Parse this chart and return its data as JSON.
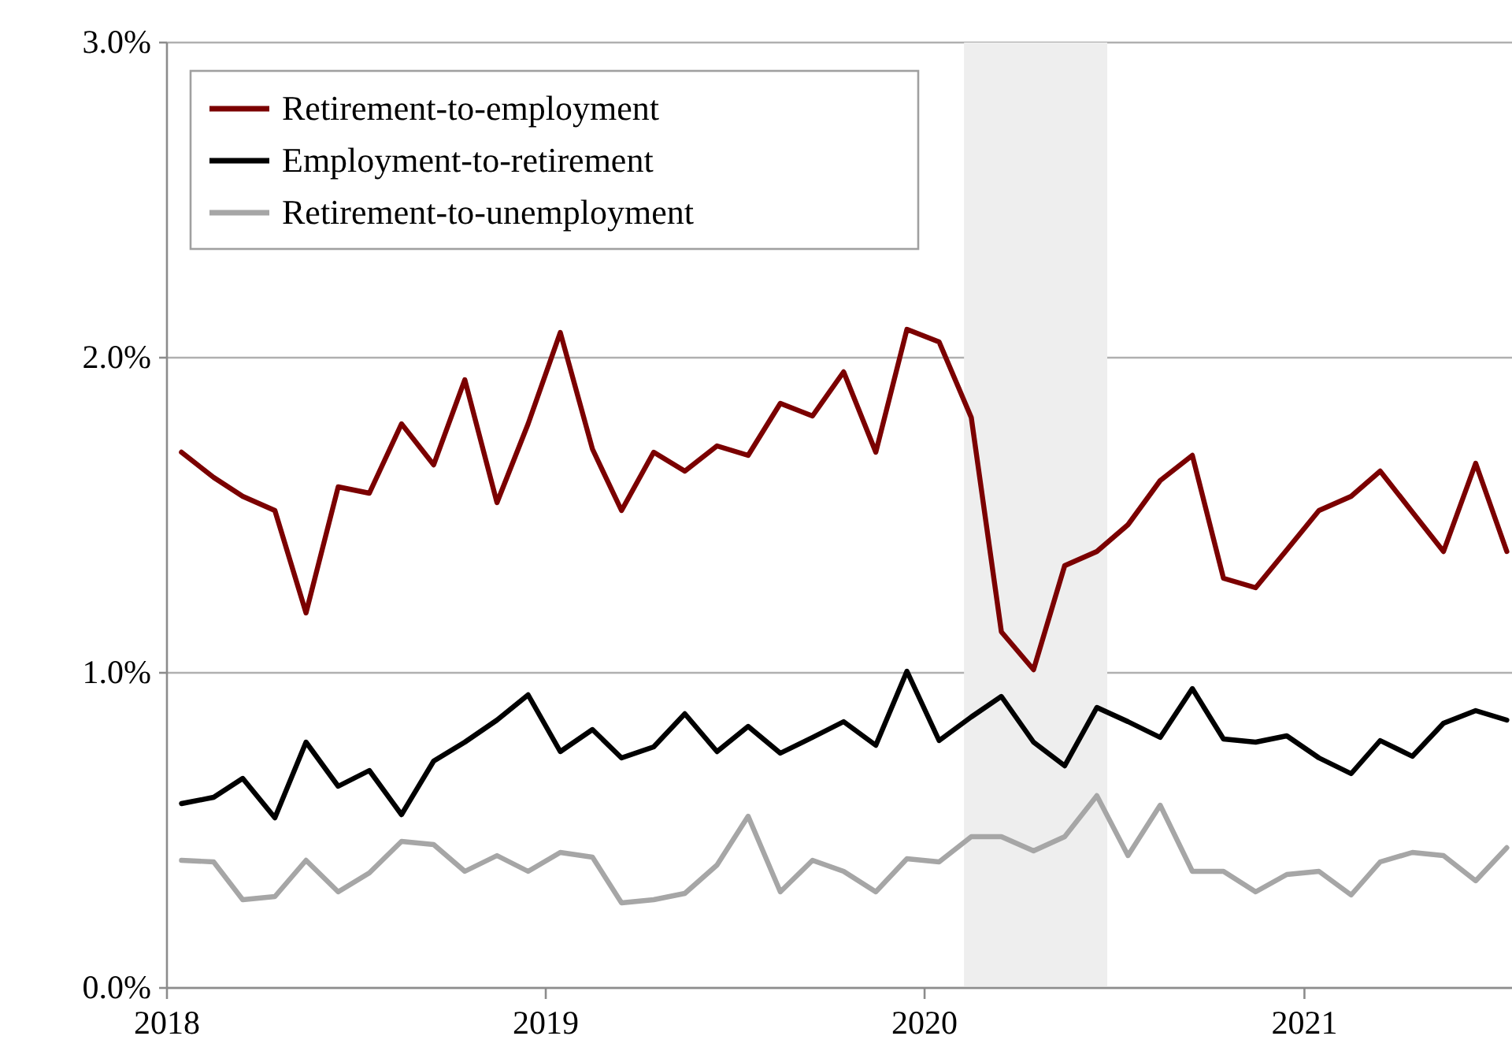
{
  "chart_data": {
    "type": "line",
    "x": [
      "2018-01-15",
      "2018-02-15",
      "2018-03-15",
      "2018-04-15",
      "2018-05-15",
      "2018-06-15",
      "2018-07-15",
      "2018-08-15",
      "2018-09-15",
      "2018-10-15",
      "2018-11-15",
      "2018-12-15",
      "2019-01-15",
      "2019-02-15",
      "2019-03-15",
      "2019-04-15",
      "2019-05-15",
      "2019-06-15",
      "2019-07-15",
      "2019-08-15",
      "2019-09-15",
      "2019-10-15",
      "2019-11-15",
      "2019-12-15",
      "2020-01-15",
      "2020-02-15",
      "2020-03-15",
      "2020-04-15",
      "2020-05-15",
      "2020-06-15",
      "2020-07-15",
      "2020-08-15",
      "2020-09-15",
      "2020-10-15",
      "2020-11-15",
      "2020-12-15",
      "2021-01-15",
      "2021-02-15",
      "2021-03-15",
      "2021-04-15",
      "2021-05-15",
      "2021-06-15",
      "2021-07-15"
    ],
    "series": [
      {
        "name": "Retirement-to-employment",
        "color": "#7b0000",
        "values": [
          1.7,
          1.62,
          1.56,
          1.515,
          1.19,
          1.59,
          1.57,
          1.79,
          1.66,
          1.93,
          1.54,
          1.79,
          2.08,
          1.71,
          1.515,
          1.7,
          1.64,
          1.72,
          1.69,
          1.855,
          1.815,
          1.955,
          1.7,
          2.09,
          2.05,
          1.81,
          1.13,
          1.01,
          1.34,
          1.385,
          1.47,
          1.61,
          1.69,
          1.3,
          1.27,
          1.39,
          1.515,
          1.56,
          1.64,
          1.51,
          1.385,
          1.665,
          1.385
        ]
      },
      {
        "name": "Employment-to-retirement",
        "color": "#000000",
        "values": [
          0.585,
          0.605,
          0.665,
          0.54,
          0.78,
          0.64,
          0.69,
          0.55,
          0.72,
          0.78,
          0.85,
          0.93,
          0.75,
          0.82,
          0.73,
          0.765,
          0.87,
          0.75,
          0.83,
          0.745,
          0.795,
          0.845,
          0.77,
          1.005,
          0.785,
          0.86,
          0.925,
          0.78,
          0.705,
          0.89,
          0.845,
          0.795,
          0.95,
          0.79,
          0.78,
          0.8,
          0.73,
          0.68,
          0.785,
          0.735,
          0.84,
          0.88,
          0.85
        ]
      },
      {
        "name": "Retirement-to-unemployment",
        "color": "#a6a6a6",
        "values": [
          0.405,
          0.4,
          0.28,
          0.29,
          0.405,
          0.305,
          0.365,
          0.465,
          0.455,
          0.37,
          0.42,
          0.37,
          0.43,
          0.415,
          0.27,
          0.28,
          0.3,
          0.39,
          0.545,
          0.305,
          0.405,
          0.37,
          0.305,
          0.41,
          0.4,
          0.48,
          0.48,
          0.435,
          0.48,
          0.61,
          0.42,
          0.58,
          0.37,
          0.37,
          0.305,
          0.36,
          0.37,
          0.295,
          0.4,
          0.43,
          0.42,
          0.34,
          0.445
        ]
      }
    ],
    "xlim": [
      "2018-01-01",
      "2021-07-20"
    ],
    "xticks": [
      {
        "value": "2018-01-01",
        "label": "2018"
      },
      {
        "value": "2019-01-01",
        "label": "2019"
      },
      {
        "value": "2020-01-01",
        "label": "2020"
      },
      {
        "value": "2021-01-01",
        "label": "2021"
      }
    ],
    "ylim": [
      0,
      3
    ],
    "yticks": [
      {
        "value": 0,
        "label": "0.0%"
      },
      {
        "value": 1,
        "label": "1.0%"
      },
      {
        "value": 2,
        "label": "2.0%"
      },
      {
        "value": 3,
        "label": "3.0%"
      }
    ],
    "bands": [
      {
        "axis": "x",
        "from": "2020-02-08",
        "to": "2020-06-25",
        "color": "#eeeeee"
      }
    ],
    "grid": "y",
    "legend": "top left",
    "line_style": "solid",
    "marker": "none"
  }
}
